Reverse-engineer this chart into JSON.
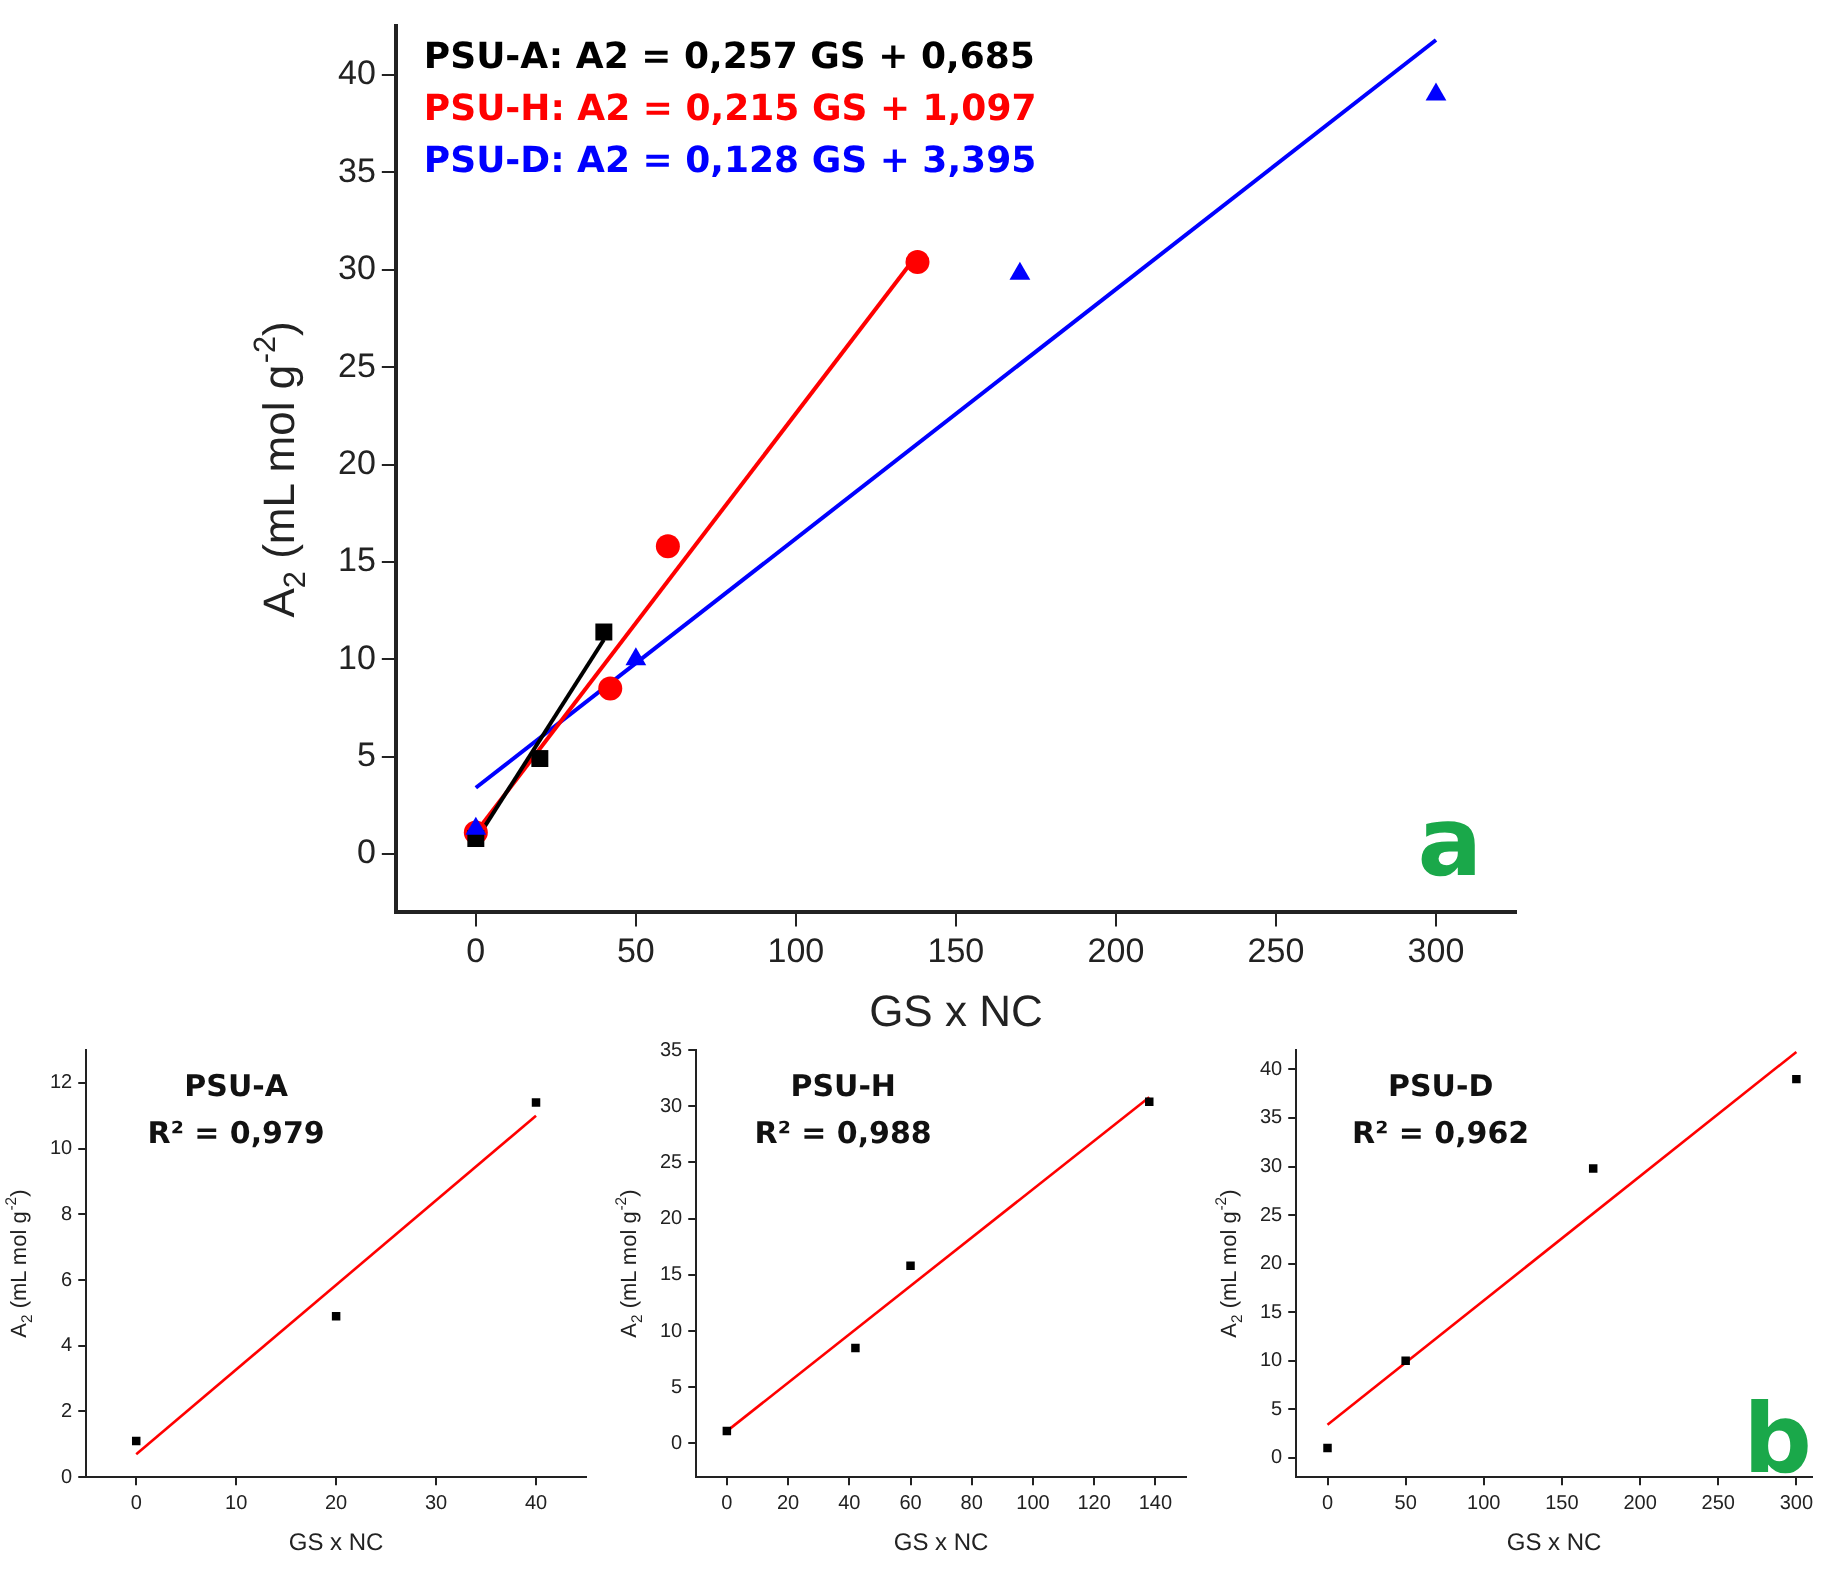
{
  "chart_data": [
    {
      "type": "scatter",
      "xlabel": "GS x NC",
      "ylabel": "A$_{2}$ (mL mol g$^{-2}$)",
      "xlim": [
        -25,
        325
      ],
      "xticks": [
        0,
        50,
        100,
        150,
        200,
        250,
        300
      ],
      "ylim": [
        -3,
        42.5
      ],
      "yticks": [
        0,
        5,
        10,
        15,
        20,
        25,
        30,
        35,
        40
      ],
      "annotations": [
        "a"
      ],
      "series": [
        {
          "color": "#000000",
          "marker": "square",
          "x": [
            0,
            20,
            40
          ],
          "values": [
            0.8,
            4.9,
            11.4
          ]
        },
        {
          "color": "#ff0000",
          "marker": "circle",
          "x": [
            0,
            42,
            60,
            138
          ],
          "values": [
            1.1,
            8.5,
            15.8,
            30.4
          ]
        },
        {
          "color": "#0000ff",
          "marker": "triangle",
          "x": [
            0,
            50,
            170,
            300
          ],
          "values": [
            1.3,
            10.0,
            29.8,
            39.0
          ]
        },
        {
          "type": "line",
          "name": "PSU-A: A2 = 0,257 GS + 0,685",
          "color": "#000000",
          "marker": "none",
          "x": [
            0,
            40
          ],
          "values": [
            0.7,
            11.0
          ]
        },
        {
          "type": "line",
          "name": "PSU-H: A2 = 0,215 GS + 1,097",
          "color": "#ff0000",
          "marker": "none",
          "x": [
            0,
            138
          ],
          "values": [
            1.1,
            30.8
          ]
        },
        {
          "type": "line",
          "name": "PSU-D: A2 = 0,128 GS + 3,395",
          "color": "#0000ff",
          "marker": "none",
          "x": [
            0,
            300
          ],
          "values": [
            3.4,
            41.8
          ]
        }
      ]
    },
    {
      "type": "scatter",
      "xlabel": "GS x NC",
      "ylabel": "A$_{2}$ (mL mol g$^{-2}$)",
      "xlim": [
        -5,
        45
      ],
      "xticks": [
        0,
        10,
        20,
        30,
        40
      ],
      "ylim": [
        0,
        13
      ],
      "yticks": [
        0,
        2,
        4,
        6,
        8,
        10,
        12
      ],
      "annotations": [
        "PSU-A",
        "R² = 0,979"
      ],
      "series": [
        {
          "color": "#000000",
          "marker": "square",
          "x": [
            0,
            20,
            40
          ],
          "values": [
            1.1,
            4.9,
            11.4
          ]
        },
        {
          "type": "line",
          "color": "#ff0000",
          "marker": "none",
          "x": [
            0,
            40
          ],
          "values": [
            0.7,
            11.0
          ]
        }
      ]
    },
    {
      "type": "scatter",
      "xlabel": "GS x NC",
      "ylabel": "A$_{2}$ (mL mol g$^{-2}$)",
      "xlim": [
        -10,
        150
      ],
      "xticks": [
        0,
        20,
        40,
        60,
        80,
        100,
        120,
        140
      ],
      "ylim": [
        -3,
        35
      ],
      "yticks": [
        0,
        5,
        10,
        15,
        20,
        25,
        30,
        35
      ],
      "annotations": [
        "PSU-H",
        "R² = 0,988"
      ],
      "series": [
        {
          "color": "#000000",
          "marker": "square",
          "x": [
            0,
            42,
            60,
            138
          ],
          "values": [
            1.1,
            8.5,
            15.8,
            30.4
          ]
        },
        {
          "type": "line",
          "color": "#ff0000",
          "marker": "none",
          "x": [
            0,
            138
          ],
          "values": [
            1.1,
            30.8
          ]
        }
      ]
    },
    {
      "type": "scatter",
      "xlabel": "GS x NC",
      "ylabel": "A$_{2}$ (mL mol g$^{-2}$)",
      "xlim": [
        -20,
        310
      ],
      "xticks": [
        0,
        50,
        100,
        150,
        200,
        250,
        300
      ],
      "ylim": [
        -2,
        42
      ],
      "yticks": [
        0,
        5,
        10,
        15,
        20,
        25,
        30,
        35,
        40
      ],
      "annotations": [
        "PSU-D",
        "R² = 0,962",
        "b"
      ],
      "series": [
        {
          "color": "#000000",
          "marker": "square",
          "x": [
            0,
            50,
            170,
            300
          ],
          "values": [
            1.0,
            10.0,
            29.8,
            39.0
          ]
        },
        {
          "type": "line",
          "color": "#ff0000",
          "marker": "none",
          "x": [
            0,
            300
          ],
          "values": [
            3.4,
            41.8
          ]
        }
      ]
    }
  ]
}
